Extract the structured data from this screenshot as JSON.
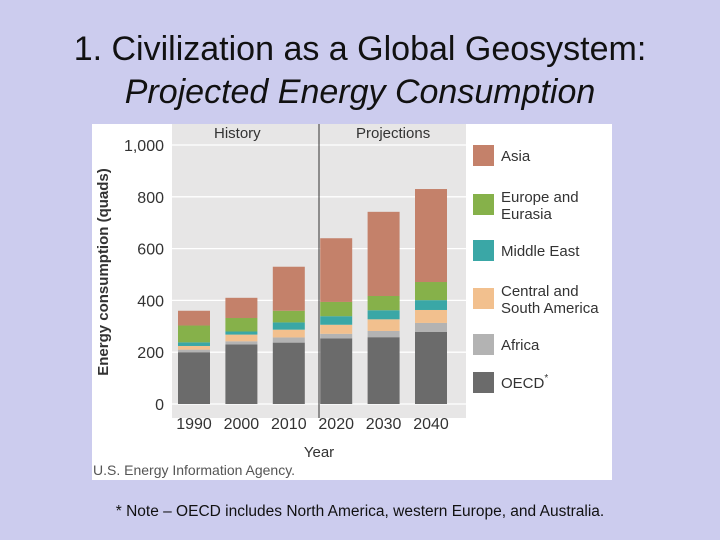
{
  "slide": {
    "title_line1": "1. Civilization as a Global Geosystem:",
    "title_line2": "Projected Energy Consumption",
    "note": "* Note – OECD includes North America, western Europe, and Australia."
  },
  "chart_data": {
    "type": "bar",
    "stacked": true,
    "title": "",
    "xlabel": "Year",
    "ylabel": "Energy consumption (quads)",
    "ylim": [
      0,
      1000
    ],
    "yticks": [
      "0",
      "200",
      "400",
      "600",
      "800",
      "1,000"
    ],
    "categories": [
      "1990",
      "2000",
      "2010",
      "2020",
      "2030",
      "2040"
    ],
    "section_labels": {
      "history": "History",
      "projections": "Projections"
    },
    "source": "U.S. Energy Information Agency.",
    "legend_position": "right",
    "series": [
      {
        "name": "OECD",
        "superscript": "*",
        "color": "#6b6b6b",
        "values": [
          200,
          230,
          237,
          253,
          258,
          278
        ]
      },
      {
        "name": "Africa",
        "color": "#b3b3b3",
        "values": [
          10,
          12,
          20,
          18,
          24,
          35
        ]
      },
      {
        "name": "Central and South America",
        "color": "#f2c08e",
        "values": [
          14,
          26,
          30,
          35,
          45,
          50
        ]
      },
      {
        "name": "Middle East",
        "color": "#3aa7a6",
        "values": [
          14,
          12,
          28,
          33,
          35,
          38
        ]
      },
      {
        "name": "Europe and Eurasia",
        "color": "#86b14a",
        "values": [
          65,
          52,
          45,
          55,
          55,
          70
        ]
      },
      {
        "name": "Asia",
        "color": "#c4816a",
        "values": [
          57,
          78,
          170,
          246,
          325,
          359
        ]
      }
    ]
  }
}
